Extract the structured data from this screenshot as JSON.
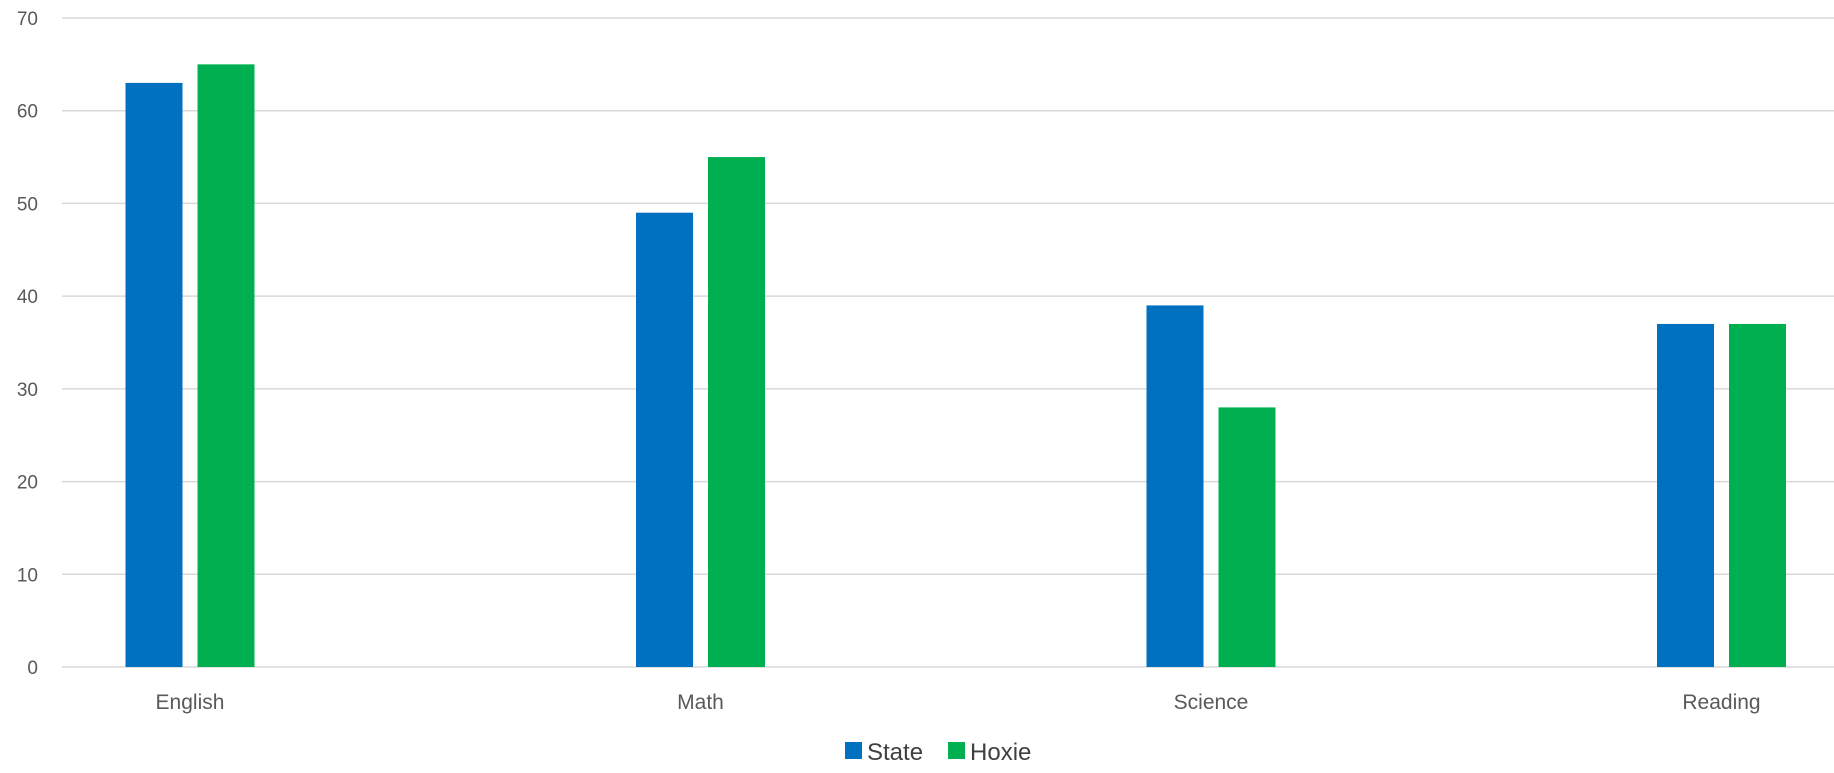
{
  "chart_data": {
    "type": "bar",
    "categories": [
      "English",
      "Math",
      "Science",
      "Reading"
    ],
    "series": [
      {
        "name": "State",
        "color": "#0070c0",
        "values": [
          63,
          49,
          39,
          37
        ]
      },
      {
        "name": "Hoxie",
        "color": "#00b050",
        "values": [
          65,
          55,
          28,
          37
        ]
      }
    ],
    "ylim": [
      0,
      70
    ],
    "yticks": [
      "0",
      "10",
      "20",
      "30",
      "40",
      "50",
      "60",
      "70"
    ],
    "grid": true,
    "legend_position": "bottom"
  }
}
